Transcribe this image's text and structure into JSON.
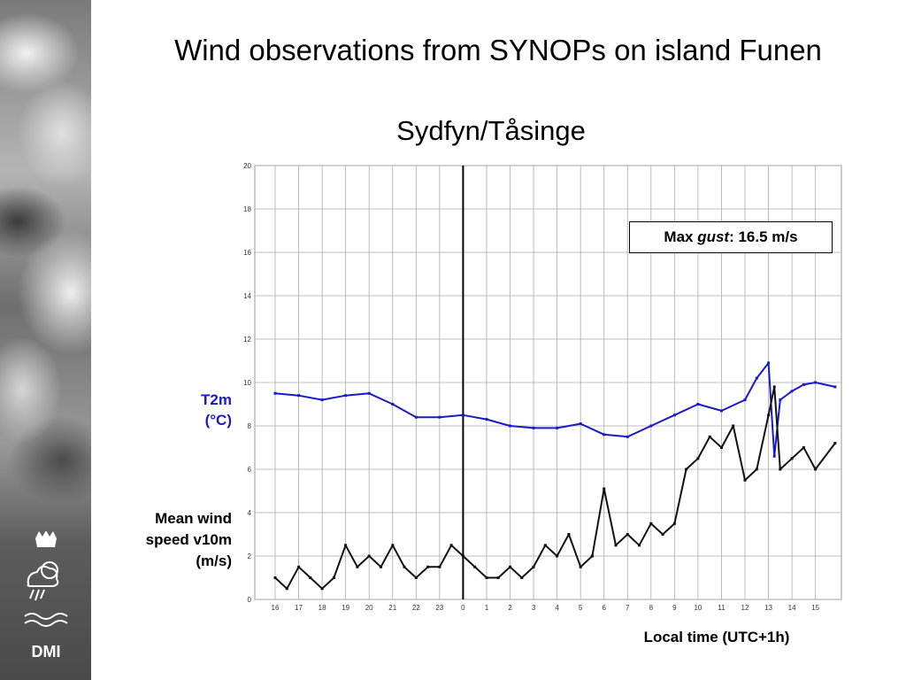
{
  "title": "Wind observations from SYNOPs on island Funen",
  "subtitle": "Sydfyn/Tåsinge",
  "labels": {
    "t2m_line1": "T2m",
    "t2m_line2": "(°C)",
    "wind_line1": "Mean wind",
    "wind_line2": "speed v10m",
    "wind_line3": "(m/s)",
    "xlabel": "Local time (UTC+1h)"
  },
  "annotation": {
    "prefix": "Max ",
    "italic": "gust",
    "suffix": ": 16.5 m/s"
  },
  "logo": {
    "text": "DMI"
  },
  "colors": {
    "t2m": "#1a1acc",
    "wind": "#111111",
    "grid": "#aaaaaa",
    "marker_line": "#000000"
  },
  "chart_data": {
    "type": "line",
    "title": "",
    "xlabel": "Local time (UTC+1h)",
    "ylim": [
      0,
      20
    ],
    "yticks": [
      0,
      2,
      4,
      6,
      8,
      10,
      12,
      14,
      16,
      18,
      20
    ],
    "x_tick_labels": [
      "16",
      "17",
      "18",
      "19",
      "20",
      "21",
      "22",
      "23",
      "0",
      "1",
      "2",
      "3",
      "4",
      "5",
      "6",
      "7",
      "8",
      "9",
      "10",
      "11",
      "12",
      "13",
      "14",
      "15"
    ],
    "grid": true,
    "vertical_marker": "0",
    "series": [
      {
        "key": "t2m",
        "x": [
          "16:00",
          "17:00",
          "18:00",
          "19:00",
          "20:00",
          "21:00",
          "22:00",
          "23:00",
          "0:00",
          "1:00",
          "2:00",
          "3:00",
          "4:00",
          "5:00",
          "6:00",
          "7:00",
          "8:00",
          "9:00",
          "10:00",
          "11:00",
          "12:00",
          "12:30",
          "13:00",
          "13:15",
          "13:30",
          "14:00",
          "14:30",
          "15:00",
          "15:50"
        ],
        "values": [
          9.5,
          9.4,
          9.2,
          9.4,
          9.5,
          9.0,
          8.4,
          8.4,
          8.5,
          8.3,
          8.0,
          7.9,
          7.9,
          8.1,
          7.6,
          7.5,
          8.0,
          8.5,
          9.0,
          8.7,
          9.2,
          10.2,
          10.9,
          6.6,
          9.2,
          9.6,
          9.9,
          10.0,
          9.8
        ]
      },
      {
        "key": "wind",
        "x": [
          "16:00",
          "16:30",
          "17:00",
          "17:30",
          "18:00",
          "18:30",
          "19:00",
          "19:30",
          "20:00",
          "20:30",
          "21:00",
          "21:30",
          "22:00",
          "22:30",
          "23:00",
          "23:30",
          "0:00",
          "0:30",
          "1:00",
          "1:30",
          "2:00",
          "2:30",
          "3:00",
          "3:30",
          "4:00",
          "4:30",
          "5:00",
          "5:30",
          "6:00",
          "6:30",
          "7:00",
          "7:30",
          "8:00",
          "8:30",
          "9:00",
          "9:30",
          "10:00",
          "10:30",
          "11:00",
          "11:30",
          "12:00",
          "12:30",
          "13:00",
          "13:15",
          "13:30",
          "14:00",
          "14:30",
          "15:00",
          "15:50"
        ],
        "values": [
          1.0,
          0.5,
          1.5,
          1.0,
          0.5,
          1.0,
          2.5,
          1.5,
          2.0,
          1.5,
          2.5,
          1.5,
          1.0,
          1.5,
          1.5,
          2.5,
          2.0,
          1.5,
          1.0,
          1.0,
          1.5,
          1.0,
          1.5,
          2.5,
          2.0,
          3.0,
          1.5,
          2.0,
          5.1,
          2.5,
          3.0,
          2.5,
          3.5,
          3.0,
          3.5,
          6.0,
          6.5,
          7.5,
          7.0,
          8.0,
          5.5,
          6.0,
          8.5,
          9.8,
          6.0,
          6.5,
          7.0,
          6.0,
          7.2
        ]
      }
    ]
  }
}
